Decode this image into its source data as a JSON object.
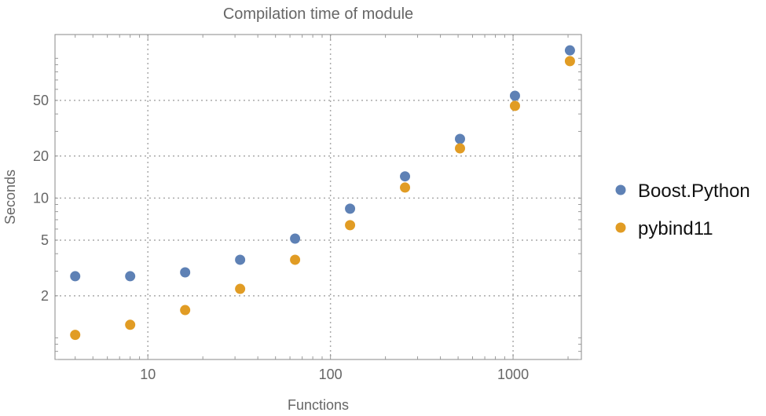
{
  "chart_data": {
    "type": "scatter",
    "title": "Compilation time of module",
    "xlabel": "Functions",
    "ylabel": "Seconds",
    "xscale": "log",
    "yscale": "log",
    "xlim": [
      3.1,
      2366
    ],
    "ylim": [
      0.7,
      148
    ],
    "grid": true,
    "legend_position": "right",
    "x_ticks": [
      10,
      100,
      1000
    ],
    "y_ticks": [
      2,
      5,
      10,
      20,
      50
    ],
    "x": [
      4,
      8,
      16,
      32,
      64,
      128,
      256,
      512,
      1024,
      2048
    ],
    "series": [
      {
        "name": "Boost.Python",
        "color": "#5E81B5",
        "values": [
          2.76,
          2.76,
          2.94,
          3.62,
          5.13,
          8.4,
          14.3,
          26.5,
          54,
          114
        ]
      },
      {
        "name": "pybind11",
        "color": "#E19C24",
        "values": [
          1.05,
          1.24,
          1.58,
          2.24,
          3.62,
          6.4,
          11.9,
          22.7,
          45.7,
          95.5
        ]
      }
    ]
  }
}
